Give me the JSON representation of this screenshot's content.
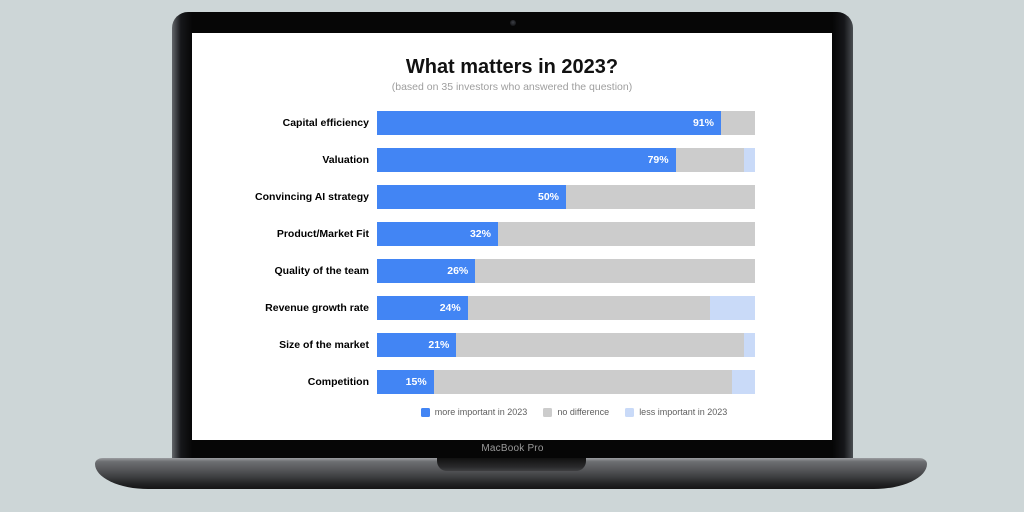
{
  "device": {
    "label": "MacBook Pro"
  },
  "colors": {
    "page_background": "#CDD6D7",
    "screen_background": "#FFFFFF",
    "more_important": "#4285F4",
    "no_difference": "#CCCCCC",
    "less_important": "#C9DAF8"
  },
  "chart_data": {
    "type": "bar",
    "orientation": "horizontal-stacked",
    "title": "What matters in 2023?",
    "subtitle": "(based on 35 investors who answered the question)",
    "categories": [
      "Capital efficiency",
      "Valuation",
      "Convincing AI strategy",
      "Product/Market Fit",
      "Quality of the team",
      "Revenue growth rate",
      "Size of the market",
      "Competition"
    ],
    "series": [
      {
        "name": "more important in 2023",
        "color": "#4285F4",
        "values": [
          91,
          79,
          50,
          32,
          26,
          24,
          21,
          15
        ]
      },
      {
        "name": "no difference",
        "color": "#CCCCCC",
        "values": [
          9,
          18,
          50,
          68,
          74,
          64,
          76,
          79
        ]
      },
      {
        "name": "less important in 2023",
        "color": "#C9DAF8",
        "values": [
          0,
          3,
          0,
          0,
          0,
          12,
          3,
          6
        ]
      }
    ],
    "value_labels": [
      "91%",
      "79%",
      "50%",
      "32%",
      "26%",
      "24%",
      "21%",
      "15%"
    ],
    "value_labels_on_series": "more important in 2023",
    "xlim": [
      0,
      100
    ],
    "grid": false,
    "legend_position": "bottom-center"
  }
}
